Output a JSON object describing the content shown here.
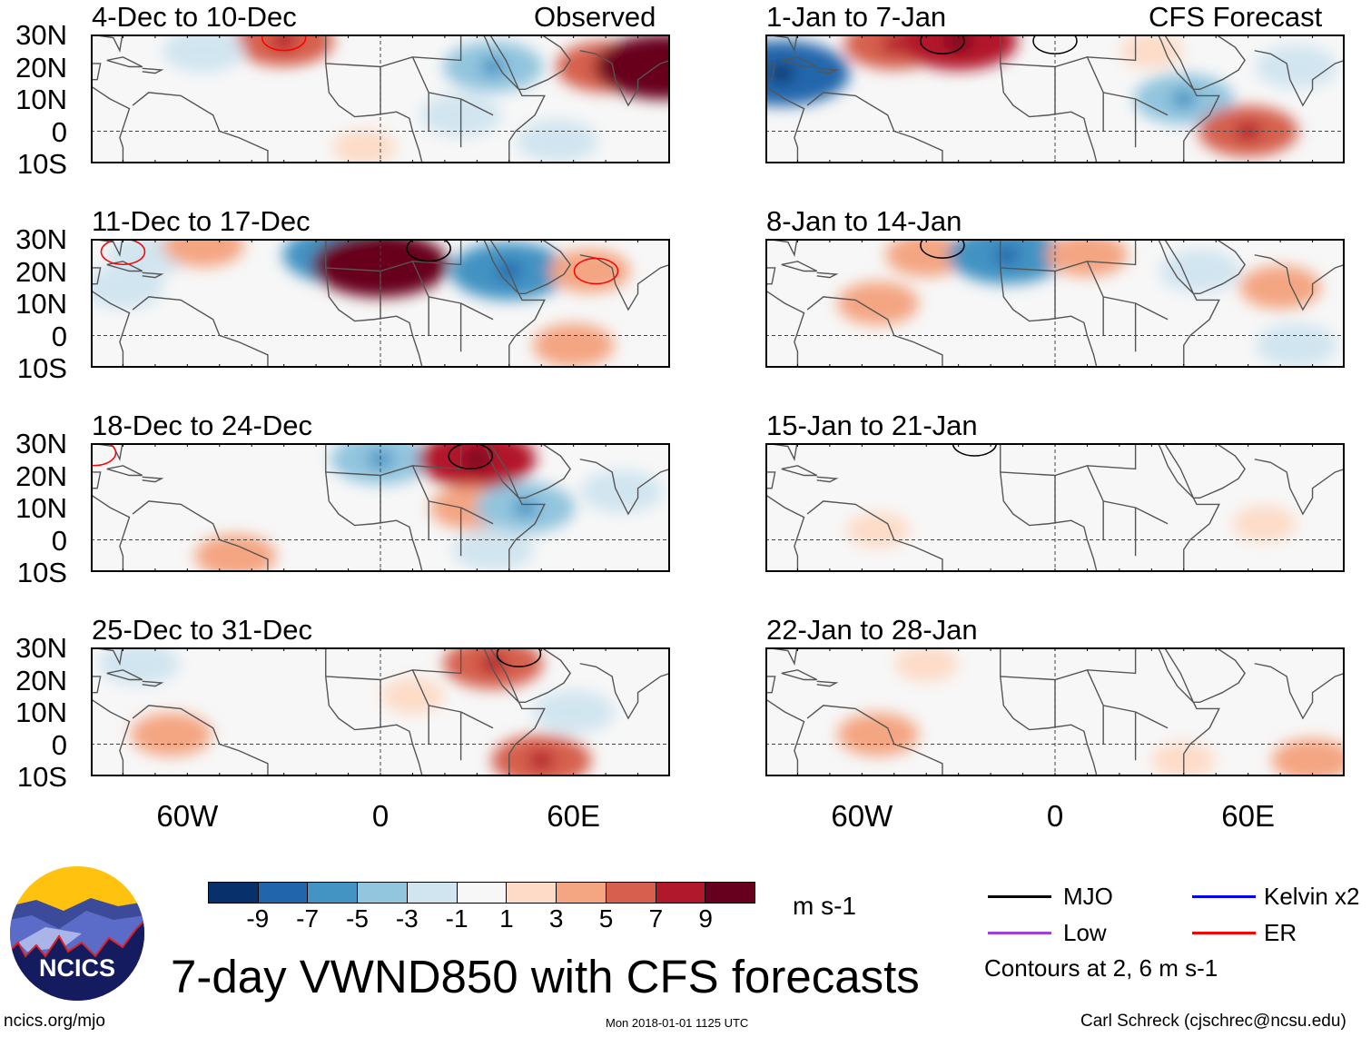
{
  "header": {
    "observed_label": "Observed",
    "forecast_label": "CFS Forecast"
  },
  "panels": [
    {
      "title": "4-Dec to 10-Dec",
      "column": "observed",
      "blobs": [
        [
          -30,
          28,
          5
        ],
        [
          -55,
          25,
          -3
        ],
        [
          35,
          20,
          -5
        ],
        [
          25,
          5,
          -3
        ],
        [
          70,
          20,
          5
        ],
        [
          88,
          20,
          9
        ],
        [
          -20,
          10,
          -1
        ],
        [
          55,
          -3,
          -3
        ],
        [
          -5,
          -5,
          1
        ]
      ],
      "contours": [
        {
          "type": "ER",
          "lon": -30,
          "lat": 29
        }
      ]
    },
    {
      "title": "11-Dec to 17-Dec",
      "column": "observed",
      "blobs": [
        [
          -72,
          25,
          -3
        ],
        [
          -55,
          28,
          3
        ],
        [
          -12,
          25,
          -7
        ],
        [
          0,
          22,
          9
        ],
        [
          40,
          20,
          -7
        ],
        [
          65,
          20,
          3
        ],
        [
          -80,
          15,
          -3
        ],
        [
          60,
          -3,
          3
        ],
        [
          20,
          0,
          -1
        ]
      ],
      "contours": [
        {
          "type": "ER",
          "lon": -80,
          "lat": 26
        },
        {
          "type": "MJO",
          "lon": 15,
          "lat": 27
        },
        {
          "type": "ER",
          "lon": 67,
          "lat": 20
        }
      ]
    },
    {
      "title": "18-Dec to 24-Dec",
      "column": "observed",
      "blobs": [
        [
          0,
          25,
          -5
        ],
        [
          30,
          25,
          7
        ],
        [
          28,
          10,
          3
        ],
        [
          45,
          10,
          -5
        ],
        [
          35,
          -3,
          -3
        ],
        [
          -45,
          -5,
          3
        ],
        [
          -60,
          20,
          -1
        ],
        [
          75,
          15,
          -3
        ]
      ],
      "contours": [
        {
          "type": "MJO",
          "lon": 28,
          "lat": 26
        },
        {
          "type": "ER",
          "lon": -89,
          "lat": 27
        }
      ]
    },
    {
      "title": "25-Dec to 31-Dec",
      "column": "observed",
      "blobs": [
        [
          35,
          25,
          5
        ],
        [
          -75,
          25,
          -3
        ],
        [
          -65,
          3,
          3
        ],
        [
          50,
          -5,
          5
        ],
        [
          10,
          15,
          1
        ],
        [
          -40,
          20,
          -1
        ],
        [
          60,
          10,
          -3
        ]
      ],
      "contours": [
        {
          "type": "MJO",
          "lon": 43,
          "lat": 28
        }
      ]
    },
    {
      "title": "1-Jan to 7-Jan",
      "column": "forecast",
      "blobs": [
        [
          -85,
          18,
          -9
        ],
        [
          -50,
          27,
          5
        ],
        [
          -30,
          28,
          7
        ],
        [
          40,
          10,
          -5
        ],
        [
          60,
          0,
          5
        ],
        [
          75,
          20,
          -3
        ],
        [
          -20,
          5,
          -1
        ],
        [
          30,
          25,
          1
        ]
      ],
      "contours": [
        {
          "type": "MJO",
          "lon": -35,
          "lat": 28
        },
        {
          "type": "MJO",
          "lon": 0,
          "lat": 28
        }
      ]
    },
    {
      "title": "8-Jan to 14-Jan",
      "column": "forecast",
      "blobs": [
        [
          -40,
          25,
          3
        ],
        [
          -55,
          10,
          3
        ],
        [
          -15,
          25,
          -7
        ],
        [
          10,
          25,
          3
        ],
        [
          45,
          20,
          -3
        ],
        [
          70,
          15,
          3
        ],
        [
          75,
          -3,
          -3
        ],
        [
          20,
          5,
          -1
        ]
      ],
      "contours": [
        {
          "type": "MJO",
          "lon": -35,
          "lat": 28
        }
      ]
    },
    {
      "title": "15-Jan to 21-Jan",
      "column": "forecast",
      "blobs": [
        [
          -55,
          3,
          1
        ],
        [
          40,
          15,
          -1
        ],
        [
          65,
          5,
          1
        ],
        [
          -10,
          -5,
          -1
        ]
      ],
      "contours": [
        {
          "type": "MJO",
          "lon": -25,
          "lat": 30
        }
      ]
    },
    {
      "title": "22-Jan to 28-Jan",
      "column": "forecast",
      "blobs": [
        [
          -55,
          3,
          3
        ],
        [
          -75,
          25,
          -1
        ],
        [
          40,
          -5,
          1
        ],
        [
          80,
          -5,
          3
        ],
        [
          -40,
          25,
          1
        ],
        [
          20,
          20,
          -1
        ]
      ],
      "contours": []
    }
  ],
  "axes": {
    "lat_labels": [
      "30N",
      "20N",
      "10N",
      "0",
      "10S"
    ],
    "lon_labels": [
      "60W",
      "0",
      "60E"
    ]
  },
  "colorbar": {
    "colors": [
      "#08306b",
      "#2166ac",
      "#4393c3",
      "#92c5de",
      "#d1e5f0",
      "#f7f7f7",
      "#fddbc7",
      "#f4a582",
      "#d6604d",
      "#b2182b",
      "#67001f"
    ],
    "labels": [
      "-9",
      "-7",
      "-5",
      "-3",
      "-1",
      "1",
      "3",
      "5",
      "7",
      "9"
    ],
    "units": "m s-1"
  },
  "legend": {
    "items": [
      {
        "label": "MJO",
        "color": "#000000"
      },
      {
        "label": "Kelvin x2",
        "color": "#0000ff"
      },
      {
        "label": "Low",
        "color": "#a040e0"
      },
      {
        "label": "ER",
        "color": "#ff0000"
      }
    ],
    "contour_note": "Contours at 2, 6 m s-1"
  },
  "logo": {
    "text": "NCICS"
  },
  "title": "7-day VWND850 with CFS forecasts",
  "footer": {
    "left": "ncics.org/mjo",
    "center": "Mon 2018-01-01 1125 UTC",
    "right": "Carl Schreck (cjschrec@ncsu.edu)"
  }
}
